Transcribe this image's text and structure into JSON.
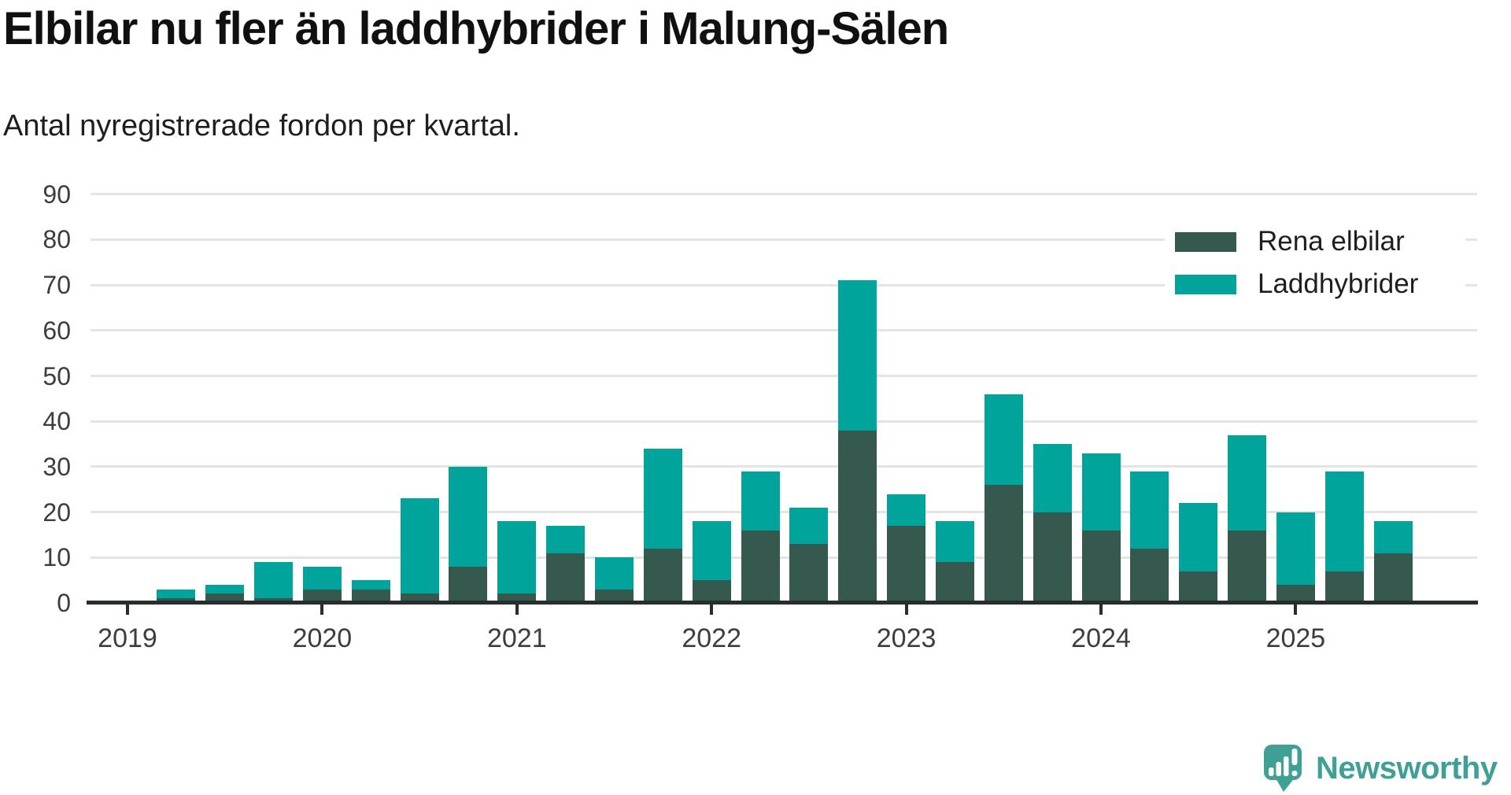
{
  "header": {
    "title": "Elbilar nu fler än laddhybrider i Malung-Sälen",
    "subtitle": "Antal nyregistrerade fordon per kvartal."
  },
  "chart_data": {
    "type": "bar",
    "stacked": true,
    "title": "Elbilar nu fler än laddhybrider i Malung-Sälen",
    "subtitle": "Antal nyregistrerade fordon per kvartal.",
    "categories": [
      "2019 Q1",
      "2019 Q2",
      "2019 Q3",
      "2019 Q4",
      "2020 Q1",
      "2020 Q2",
      "2020 Q3",
      "2020 Q4",
      "2021 Q1",
      "2021 Q2",
      "2021 Q3",
      "2021 Q4",
      "2022 Q1",
      "2022 Q2",
      "2022 Q3",
      "2022 Q4",
      "2023 Q1",
      "2023 Q2",
      "2023 Q3",
      "2023 Q4",
      "2024 Q1",
      "2024 Q2",
      "2024 Q3",
      "2024 Q4",
      "2025 Q1",
      "2025 Q2",
      "2025 Q3",
      "2025 Q4"
    ],
    "series": [
      {
        "name": "Rena elbilar",
        "color": "#35594f",
        "values": [
          null,
          1,
          2,
          1,
          3,
          3,
          2,
          8,
          2,
          11,
          3,
          12,
          5,
          16,
          13,
          38,
          17,
          9,
          26,
          20,
          16,
          12,
          7,
          16,
          4,
          7,
          11,
          null
        ]
      },
      {
        "name": "Laddhybrider",
        "color": "#00a49a",
        "values": [
          null,
          2,
          2,
          8,
          5,
          2,
          21,
          22,
          16,
          6,
          7,
          22,
          13,
          13,
          8,
          33,
          7,
          9,
          20,
          15,
          17,
          17,
          15,
          21,
          16,
          22,
          7,
          null
        ]
      }
    ],
    "stack_totals": [
      null,
      3,
      4,
      9,
      8,
      5,
      23,
      30,
      18,
      17,
      10,
      34,
      18,
      29,
      21,
      71,
      24,
      18,
      46,
      35,
      33,
      29,
      22,
      37,
      20,
      29,
      18,
      null
    ],
    "x_year_ticks": {
      "labels": [
        "2019",
        "2020",
        "2021",
        "2022",
        "2023",
        "2024",
        "2025"
      ],
      "category_indices": [
        0,
        4,
        8,
        12,
        16,
        20,
        24
      ]
    },
    "ylim": [
      0,
      90
    ],
    "ytick_step": 10,
    "grid": "horizontal",
    "legend_position": "top-right"
  },
  "legend": {
    "items": [
      {
        "label": "Rena elbilar",
        "color": "#35594f"
      },
      {
        "label": "Laddhybrider",
        "color": "#00a49a"
      }
    ]
  },
  "branding": {
    "text": "Newsworthy",
    "color": "#3fa096",
    "icon": "newsworthy-speech-bubble-chart-icon"
  },
  "colors": {
    "background": "#ffffff",
    "axis": "#282d2d",
    "gridline": "#e4e4e4",
    "tick_label": "#3d3d3d",
    "title_text": "#101010"
  }
}
